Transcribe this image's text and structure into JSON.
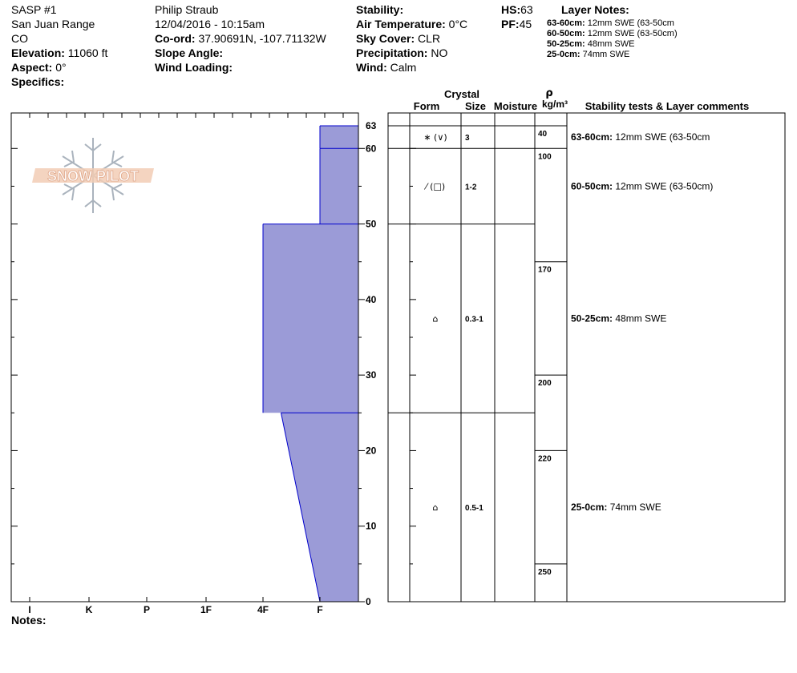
{
  "header": {
    "col1": {
      "site": "SASP #1",
      "range": "San Juan Range",
      "state": "CO",
      "elevation_label": "Elevation:",
      "elevation_value": "11060 ft",
      "aspect_label": "Aspect:",
      "aspect_value": "0°",
      "specifics_label": "Specifics:"
    },
    "col2": {
      "observer": "Philip Straub",
      "datetime": "12/04/2016 - 10:15am",
      "coord_label": "Co-ord:",
      "coord_value": "37.90691N, -107.71132W",
      "slope_label": "Slope Angle:",
      "wind_loading_label": "Wind Loading:"
    },
    "col3": {
      "stability_label": "Stability:",
      "air_temp_label": "Air Temperature:",
      "air_temp_value": "0°C",
      "sky_label": "Sky Cover:",
      "sky_value": "CLR",
      "precip_label": "Precipitation:",
      "precip_value": "NO",
      "wind_label": "Wind:",
      "wind_value": "Calm"
    },
    "col4": {
      "hs_label": "HS:",
      "hs_value": "63",
      "pf_label": "PF:",
      "pf_value": "45"
    },
    "layer_notes": {
      "title": "Layer Notes:",
      "items": [
        {
          "range": "63-60cm:",
          "text": "12mm SWE (63-50cm"
        },
        {
          "range": "60-50cm:",
          "text": "12mm SWE (63-50cm)"
        },
        {
          "range": "50-25cm:",
          "text": "48mm SWE"
        },
        {
          "range": "25-0cm:",
          "text": "74mm SWE"
        }
      ]
    }
  },
  "logo": {
    "text": "SNOW PILOT"
  },
  "notes_label": "Notes:",
  "table_headers": {
    "crystal": "Crystal",
    "form": "Form",
    "size": "Size",
    "moisture": "Moisture",
    "rho": "ρ",
    "density_unit": "kg/m³",
    "stability": "Stability tests & Layer comments"
  },
  "colors": {
    "hardness_fill": "#9b9bd7",
    "hardness_line": "#0000cc",
    "axis": "#000000"
  },
  "chart_data": {
    "type": "area",
    "title": "",
    "xlabel": "",
    "ylabel": "",
    "hardness_ticks": [
      "I",
      "K",
      "P",
      "1F",
      "4F",
      "F"
    ],
    "hs": 63,
    "ylim": [
      0,
      63
    ],
    "height_ticks": [
      "0",
      "10",
      "20",
      "30",
      "40",
      "50",
      "60",
      "63"
    ],
    "height_tick_values": [
      0,
      10,
      20,
      30,
      40,
      50,
      60,
      63
    ],
    "hardness_profile": [
      {
        "top": 63,
        "bottom": 60,
        "hardness_top": "F",
        "hardness_bottom": "F"
      },
      {
        "top": 60,
        "bottom": 50,
        "hardness_top": "F",
        "hardness_bottom": "F"
      },
      {
        "top": 50,
        "bottom": 25,
        "hardness_top": "4F",
        "hardness_bottom": "4F"
      },
      {
        "top": 25,
        "bottom": 0,
        "hardness_top": "4F-F",
        "hardness_bottom": "F"
      }
    ]
  },
  "layers": [
    {
      "top": 63,
      "bottom": 60,
      "form": "∗ (∨)",
      "size": "3",
      "moisture": "",
      "comment_range": "63-60cm:",
      "comment_text": "12mm SWE (63-50cm"
    },
    {
      "top": 60,
      "bottom": 50,
      "form": "⁄ (□)",
      "size": "1-2",
      "moisture": "",
      "comment_range": "60-50cm:",
      "comment_text": "12mm SWE (63-50cm)"
    },
    {
      "top": 50,
      "bottom": 25,
      "form": "⌂",
      "size": "0.3-1",
      "moisture": "",
      "comment_range": "50-25cm:",
      "comment_text": "48mm SWE"
    },
    {
      "top": 25,
      "bottom": 0,
      "form": "⌂",
      "size": "0.5-1",
      "moisture": "",
      "comment_range": "25-0cm:",
      "comment_text": "74mm SWE"
    }
  ],
  "densities": [
    {
      "value": "40",
      "top": 63,
      "bottom": 60
    },
    {
      "value": "100",
      "top": 60,
      "bottom": 45
    },
    {
      "value": "170",
      "top": 45,
      "bottom": 30
    },
    {
      "value": "200",
      "top": 30,
      "bottom": 20
    },
    {
      "value": "220",
      "top": 20,
      "bottom": 5
    },
    {
      "value": "250",
      "top": 5,
      "bottom": 0
    }
  ]
}
